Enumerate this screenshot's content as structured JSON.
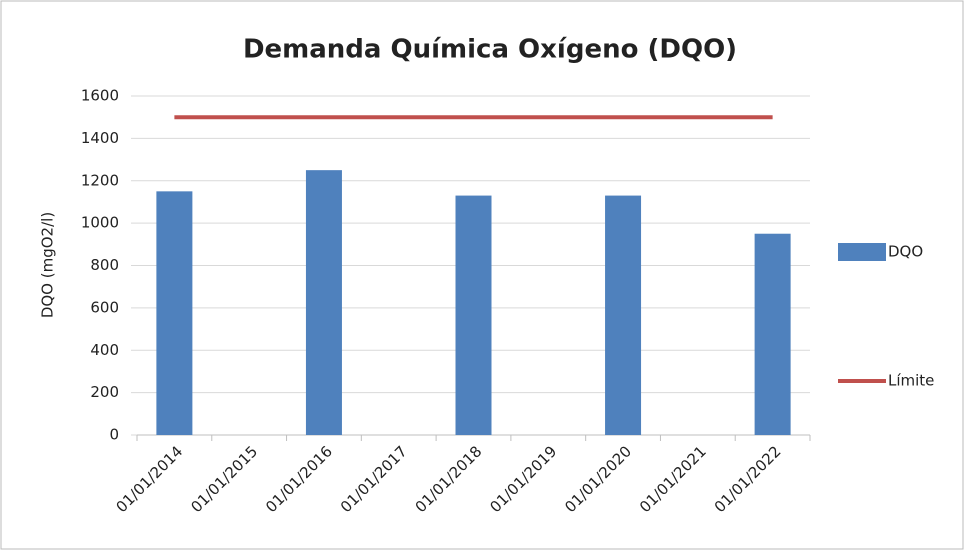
{
  "chart_data": {
    "type": "bar",
    "title": "Demanda Química Oxígeno (DQO)",
    "y_label": "DQO (mgO2/l)",
    "categories": [
      "01/01/2014",
      "01/01/2015",
      "01/01/2016",
      "01/01/2017",
      "01/01/2018",
      "01/01/2019",
      "01/01/2020",
      "01/01/2021",
      "01/01/2022"
    ],
    "series": [
      {
        "name": "DQO",
        "type": "bar",
        "color": "#4f81bd",
        "values": [
          1150,
          null,
          1250,
          null,
          1130,
          null,
          1130,
          null,
          950
        ]
      },
      {
        "name": "Límite",
        "type": "line",
        "color": "#c0504d",
        "values": [
          1500,
          1500,
          1500,
          1500,
          1500,
          1500,
          1500,
          1500,
          1500
        ]
      }
    ],
    "ylim": [
      0,
      1600
    ],
    "yticks": [
      0,
      200,
      400,
      600,
      800,
      1000,
      1200,
      1400,
      1600
    ],
    "grid": true,
    "legend": "right"
  }
}
